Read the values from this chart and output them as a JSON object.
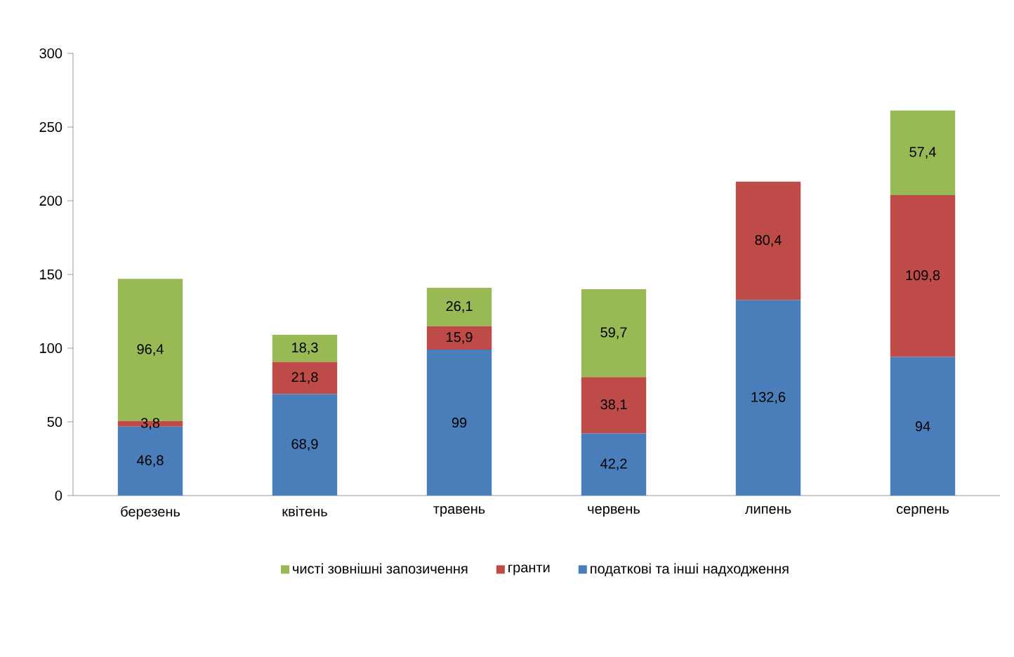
{
  "chart_data": {
    "type": "bar",
    "stacked": true,
    "categories": [
      "березень",
      "квітень",
      "травень",
      "червень",
      "липень",
      "серпень"
    ],
    "series": [
      {
        "name": "податкові та інші надходження",
        "color": "#4a7ebb",
        "values": [
          46.8,
          68.9,
          99,
          42.2,
          132.6,
          94
        ],
        "value_labels": [
          "46,8",
          "68,9",
          "99",
          "42,2",
          "132,6",
          "94"
        ]
      },
      {
        "name": "гранти",
        "color": "#be4b48",
        "values": [
          3.8,
          21.8,
          15.9,
          38.1,
          80.4,
          109.8
        ],
        "value_labels": [
          "3,8",
          "21,8",
          "15,9",
          "38,1",
          "80,4",
          "109,8"
        ]
      },
      {
        "name": "чисті зовнішні запозичення",
        "color": "#98b954",
        "values": [
          96.4,
          18.3,
          26.1,
          59.7,
          null,
          57.4
        ],
        "value_labels": [
          "96,4",
          "18,3",
          "26,1",
          "59,7",
          null,
          "57,4"
        ]
      }
    ],
    "ylim": [
      0,
      300
    ],
    "yticks": [
      0,
      50,
      100,
      150,
      200,
      250,
      300
    ],
    "grid": false,
    "legend": "bottom"
  }
}
